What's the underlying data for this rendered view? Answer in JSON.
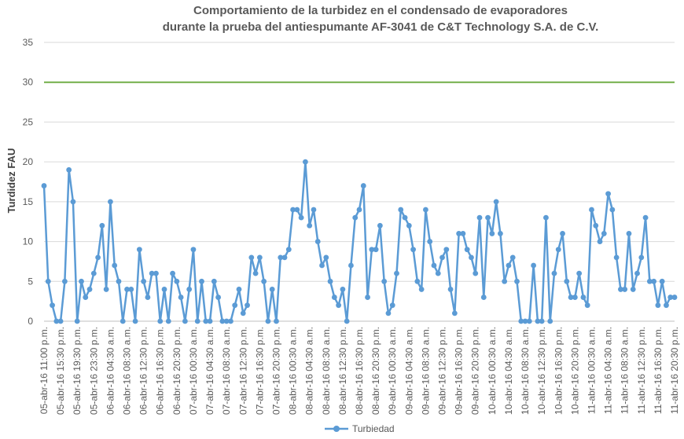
{
  "chart_data": {
    "type": "line",
    "title_lines": [
      "Comportamiento de la turbidez en el condensado de evaporadores",
      "durante la prueba del antiespumante AF-3041 de C&T Technology S.A. de C.V."
    ],
    "ylabel": "Turdidez FAU",
    "ylim": [
      0,
      35
    ],
    "yticks": [
      0,
      5,
      10,
      15,
      20,
      25,
      30,
      35
    ],
    "grid": true,
    "legend_position": "bottom",
    "x_tick_labels": [
      "05-abr-16 11:00 p.m.",
      "05-abr-16 15:30 p.m.",
      "05-abr-16 19:30 p.m.",
      "05-abr-16 23:30 p.m.",
      "06-abr-16 04:30 a.m.",
      "06-abr-16 08:30 a.m.",
      "06-abr-16 12:30 p.m.",
      "06-abr-16 16:30 p.m.",
      "06-abr-16 20:30 p.m.",
      "07-abr-16 00:30 a.m.",
      "07-abr-16 04:30 a.m.",
      "07-abr-16 08:30 a.m.",
      "07-abr-16 12:30 p.m.",
      "07-abr-16 16:30 p.m.",
      "07-abr-16 20:30 p.m.",
      "08-abr-16 00:30 a.m.",
      "08-abr-16 04:30 a.m.",
      "08-abr-16 08:30 a.m.",
      "08-abr-16 12:30 p.m.",
      "08-abr-16 16:30 p.m.",
      "08-abr-16 20:30 p.m.",
      "09-abr-16 00:30 a.m.",
      "09-abr-16 04:30 a.m.",
      "09-abr-16 08:30 a.m.",
      "09-abr-16 12:30 p.m.",
      "09-abr-16 16:30 p.m.",
      "09-abr-16 20:30 p.m.",
      "10-abr-16 00:30 a.m.",
      "10-abr-16 04:30 a.m.",
      "10-abr-16 08:30 a.m.",
      "10-abr-16 12:30 p.m.",
      "10-abr-16 16:30 p.m.",
      "10-abr-16 20:30 p.m.",
      "11-abr-16 00:30 a.m.",
      "11-abr-16 04:30 a.m.",
      "11-abr-16 08:30 a.m.",
      "11-abr-16 12:30 p.m.",
      "11-abr-16 16:30 p.m.",
      "11-abr-16 20:30 p.m."
    ],
    "points_per_tick": 4,
    "series": [
      {
        "name": "Turbiedad",
        "color": "#5b9bd5",
        "values": [
          17,
          5,
          2,
          0,
          0,
          5,
          19,
          15,
          0,
          5,
          3,
          4,
          6,
          8,
          12,
          4,
          15,
          7,
          5,
          0,
          4,
          4,
          0,
          9,
          5,
          3,
          6,
          6,
          0,
          4,
          0,
          6,
          5,
          3,
          0,
          4,
          9,
          0,
          5,
          0,
          0,
          5,
          3,
          0,
          0,
          0,
          2,
          4,
          1,
          2,
          8,
          6,
          8,
          5,
          0,
          4,
          0,
          8,
          8,
          9,
          14,
          14,
          13,
          20,
          12,
          14,
          10,
          7,
          8,
          5,
          3,
          2,
          4,
          0,
          7,
          13,
          14,
          17,
          3,
          9,
          9,
          12,
          5,
          1,
          2,
          6,
          14,
          13,
          12,
          9,
          5,
          4,
          14,
          10,
          7,
          6,
          8,
          9,
          4,
          1,
          11,
          11,
          9,
          8,
          6,
          13,
          3,
          13,
          11,
          15,
          11,
          5,
          7,
          8,
          5,
          0,
          0,
          0,
          7,
          0,
          0,
          13,
          0,
          6,
          9,
          11,
          5,
          3,
          3,
          6,
          3,
          2,
          14,
          12,
          10,
          11,
          16,
          14,
          8,
          4,
          4,
          11,
          4,
          6,
          8,
          13,
          5,
          5,
          2,
          5,
          2,
          3,
          3
        ]
      }
    ],
    "reference_line": {
      "value": 30,
      "color": "#70ad47"
    }
  }
}
